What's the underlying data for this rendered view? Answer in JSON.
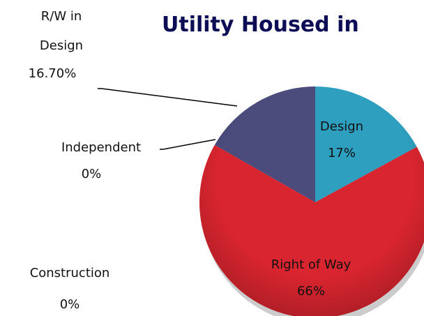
{
  "chart_data": {
    "type": "pie",
    "title": "Utility Housed in",
    "categories": [
      "Design",
      "Right of Way",
      "Independent",
      "Construction",
      "R/W in Design"
    ],
    "values": [
      17,
      66,
      0,
      0,
      16.7
    ],
    "value_labels": [
      "17%",
      "66%",
      "0%",
      "0%",
      "16.70%"
    ],
    "colors": [
      "#2f9fc0",
      "#d9252f",
      "#6a6a9a",
      "#8a8a8a",
      "#4b4b7c"
    ]
  }
}
